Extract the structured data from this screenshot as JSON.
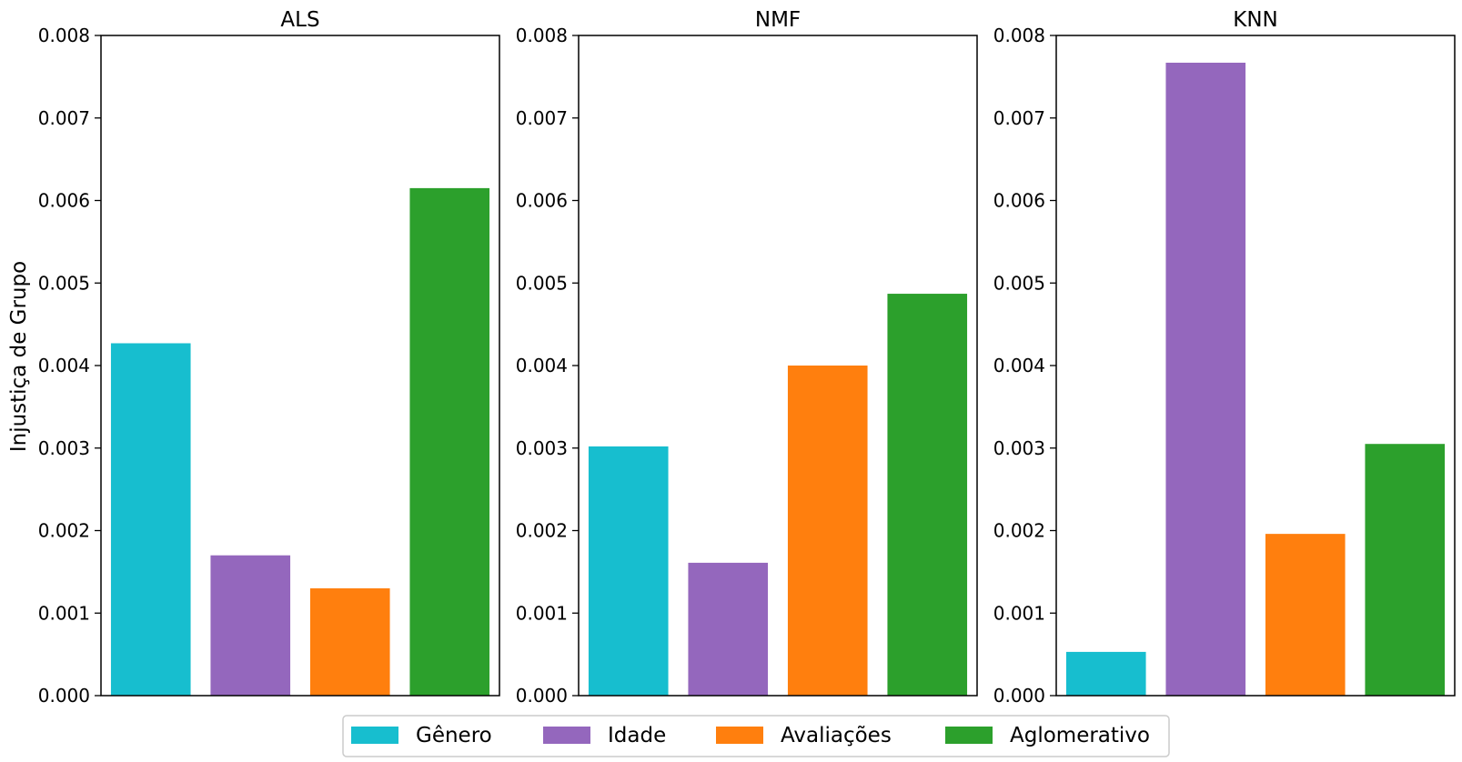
{
  "chart_data": {
    "type": "bar",
    "ylabel": "Injustiça de Grupo",
    "ylim": [
      0,
      0.008
    ],
    "yticks": [
      "0.000",
      "0.001",
      "0.002",
      "0.003",
      "0.004",
      "0.005",
      "0.006",
      "0.007",
      "0.008"
    ],
    "grid": false,
    "legend_position": "bottom-center",
    "series": [
      {
        "name": "Gênero",
        "color": "#17becf"
      },
      {
        "name": "Idade",
        "color": "#9467bd"
      },
      {
        "name": "Avaliações",
        "color": "#ff7f0e"
      },
      {
        "name": "Aglomerativo",
        "color": "#2ca02c"
      }
    ],
    "panels": [
      {
        "title": "ALS",
        "values": [
          0.00427,
          0.0017,
          0.0013,
          0.00615
        ]
      },
      {
        "title": "NMF",
        "values": [
          0.00302,
          0.00161,
          0.004,
          0.00487
        ]
      },
      {
        "title": "KNN",
        "values": [
          0.00053,
          0.00767,
          0.00196,
          0.00305
        ]
      }
    ]
  }
}
